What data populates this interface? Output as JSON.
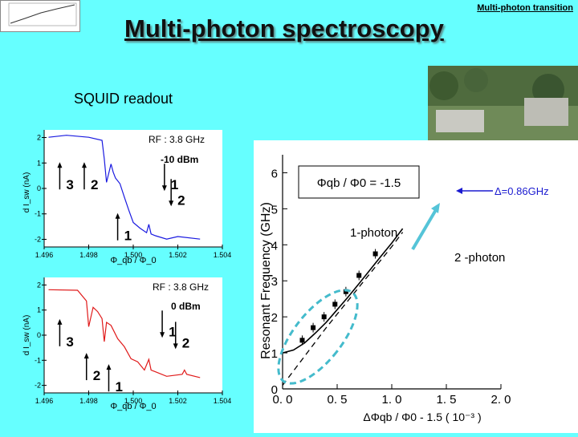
{
  "slide": {
    "title": "Multi-photon spectroscopy",
    "corner_label": "Multi-photon transition",
    "squid_label": "SQUID readout"
  },
  "colors": {
    "background": "#66ffff",
    "top_trace": "#1a1ae0",
    "bottom_trace": "#e01a1a",
    "ellipse": "#44bbcc",
    "arrow": "#55c4d8"
  },
  "chart_data": [
    {
      "type": "line",
      "name": "top-panel",
      "ylabel": "d I_sw (nA)",
      "xlabel": "Φ_qb / Φ_0",
      "annotation_rf": "RF : 3.8 GHz",
      "annotation_power": "-10 dBm",
      "xlim": [
        1.496,
        1.504
      ],
      "ylim": [
        -2.3,
        2.3
      ],
      "xticks": [
        "1.496",
        "1.498",
        "1.500",
        "1.502",
        "1.504"
      ],
      "yticks": [
        "2",
        "1",
        "0",
        "-1",
        "-2"
      ],
      "peak_labels": [
        {
          "text": "3",
          "x": 1.4967,
          "y": 0.15,
          "arrow": "up"
        },
        {
          "text": "2",
          "x": 1.4978,
          "y": 0.15,
          "arrow": "up"
        },
        {
          "text": "1",
          "x": 1.4993,
          "y": -1.85,
          "arrow": "up"
        },
        {
          "text": "1",
          "x": 1.5014,
          "y": 0.15,
          "arrow": "down"
        },
        {
          "text": "2",
          "x": 1.5017,
          "y": -0.45,
          "arrow": "down"
        }
      ],
      "x": [
        1.4962,
        1.497,
        1.498,
        1.4986,
        1.4987,
        1.4988,
        1.499,
        1.4991,
        1.4992,
        1.4994,
        1.4996,
        1.4998,
        1.5,
        1.5003,
        1.5006,
        1.5007,
        1.5008,
        1.501,
        1.5015,
        1.502,
        1.503
      ],
      "y": [
        2.05,
        2.05,
        2.05,
        1.85,
        1.2,
        0.2,
        1.0,
        0.6,
        0.45,
        0.15,
        -0.3,
        -0.9,
        -1.3,
        -1.6,
        -1.7,
        -1.45,
        -1.75,
        -1.9,
        -1.95,
        -1.93,
        -1.95
      ]
    },
    {
      "type": "line",
      "name": "bottom-panel",
      "ylabel": "d I_sw (nA)",
      "xlabel": "Φ_qb / Φ_0",
      "annotation_rf": "RF : 3.8 GHz",
      "annotation_power": "0 dBm",
      "xlim": [
        1.496,
        1.504
      ],
      "ylim": [
        -2.3,
        2.3
      ],
      "xticks": [
        "1.496",
        "1.498",
        "1.500",
        "1.502",
        "1.504"
      ],
      "yticks": [
        "2",
        "1",
        "0",
        "-1",
        "-2"
      ],
      "peak_labels": [
        {
          "text": "3",
          "x": 1.4967,
          "y": -0.25,
          "arrow": "up"
        },
        {
          "text": "2",
          "x": 1.4979,
          "y": -1.6,
          "arrow": "up"
        },
        {
          "text": "1",
          "x": 1.4989,
          "y": -2.05,
          "arrow": "up"
        },
        {
          "text": "1",
          "x": 1.5013,
          "y": 0.15,
          "arrow": "down"
        },
        {
          "text": "2",
          "x": 1.5019,
          "y": -0.3,
          "arrow": "down"
        }
      ],
      "x": [
        1.4962,
        1.4975,
        1.4979,
        1.498,
        1.4982,
        1.4984,
        1.4986,
        1.4987,
        1.4988,
        1.499,
        1.4993,
        1.4996,
        1.4999,
        1.5002,
        1.5005,
        1.5007,
        1.5008,
        1.501,
        1.5015,
        1.5022,
        1.5023,
        1.5024,
        1.503
      ],
      "y": [
        1.85,
        1.75,
        1.4,
        0.3,
        1.15,
        0.9,
        0.7,
        -0.3,
        0.55,
        0.35,
        -0.1,
        -0.5,
        -0.9,
        -1.1,
        -1.35,
        -1.0,
        -1.35,
        -1.5,
        -1.6,
        -1.6,
        -1.35,
        -1.6,
        -1.65
      ]
    },
    {
      "type": "scatter",
      "name": "resonance-plot",
      "ylabel": "Resonant Frequency (GHz)",
      "xlabel": "ΔΦqb / Φ0 - 1.5  ( 10⁻³ )",
      "xlim": [
        0.0,
        2.0
      ],
      "ylim": [
        0,
        6.5
      ],
      "xticks": [
        "0. 0",
        "0. 5",
        "1. 0",
        "1. 5",
        "2. 0"
      ],
      "yticks": [
        "0",
        "1",
        "2",
        "3",
        "4",
        "5",
        "6"
      ],
      "inset_formula": "Φqb / Φ0 = -1.5",
      "delta_label": "Δ=0.86GHz",
      "one_photon_label": "1-photon",
      "two_photon_label": "2 -photon",
      "points": {
        "x": [
          0.18,
          0.28,
          0.38,
          0.48,
          0.58,
          0.7,
          0.85
        ],
        "y": [
          1.35,
          1.7,
          2.0,
          2.35,
          2.7,
          3.15,
          3.75
        ]
      },
      "one_photon_curve": {
        "x": [
          0.0,
          0.1,
          0.2,
          0.3,
          0.4,
          0.5,
          0.6,
          0.7,
          0.8,
          0.9,
          1.0,
          1.1
        ],
        "y": [
          1.0,
          1.08,
          1.27,
          1.55,
          1.85,
          2.2,
          2.55,
          2.92,
          3.3,
          3.68,
          4.05,
          4.45
        ]
      },
      "two_photon_curve": {
        "x": [
          0.0,
          0.2,
          0.4,
          0.6,
          0.8,
          1.0,
          1.1
        ],
        "y": [
          0.1,
          0.9,
          1.7,
          2.45,
          3.2,
          3.95,
          4.35
        ]
      }
    }
  ]
}
